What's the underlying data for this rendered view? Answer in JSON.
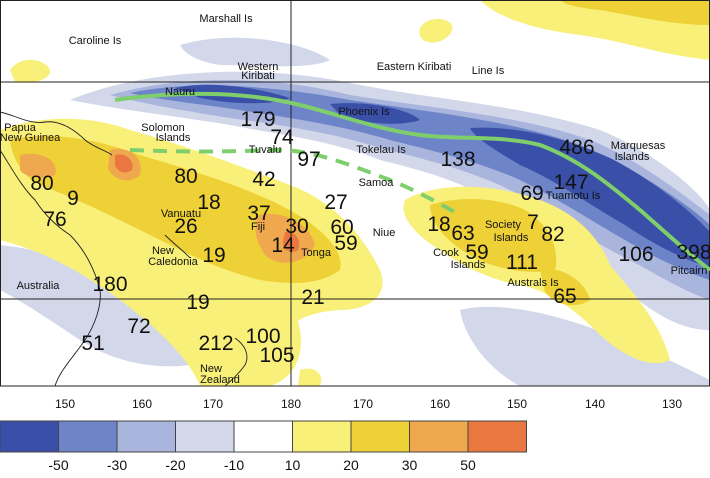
{
  "colors": {
    "blue_dark": "#3a4fa8",
    "blue_mid": "#6d84c8",
    "blue_light": "#a9b5dc",
    "blue_pale": "#d2d8ea",
    "white": "#ffffff",
    "yellow_pale": "#f8f078",
    "yellow": "#eed136",
    "orange": "#f0a84e",
    "orange_dark": "#ea7740",
    "spcz_line": "#7ecf6c"
  },
  "place_labels": [
    "Marshall Is",
    "Caroline Is",
    "Western",
    "Kiribati",
    "Eastern Kiribati",
    "Line Is",
    "Nauru",
    "Phoenix Is",
    "Papua",
    "New Guinea",
    "Solomon",
    "Islands",
    "Tuvalu",
    "Tokelau Is",
    "Marquesas",
    "Islands",
    "Samoa",
    "Tuamotu Is",
    "Vanuatu",
    "Fiji",
    "Niue",
    "Society",
    "Islands",
    "Tonga",
    "Cook",
    "Islands",
    "New",
    "Caledonia",
    "Australs Is",
    "Pitcairn",
    "Australia",
    "New",
    "Zealand"
  ],
  "values": [
    "179",
    "74",
    "97",
    "138",
    "486",
    "80",
    "9",
    "80",
    "18",
    "42",
    "147",
    "69",
    "76",
    "37",
    "30",
    "27",
    "60",
    "18",
    "63",
    "7",
    "82",
    "26",
    "19",
    "14",
    "59",
    "59",
    "111",
    "106",
    "398",
    "180",
    "21",
    "65",
    "19",
    "72",
    "51",
    "212",
    "100",
    "105"
  ],
  "longitudes": [
    "150",
    "160",
    "170",
    "180",
    "170",
    "160",
    "150",
    "140",
    "130"
  ],
  "legend_ticks": [
    "-50",
    "-30",
    "-20",
    "-10",
    "10",
    "20",
    "30",
    "50"
  ]
}
